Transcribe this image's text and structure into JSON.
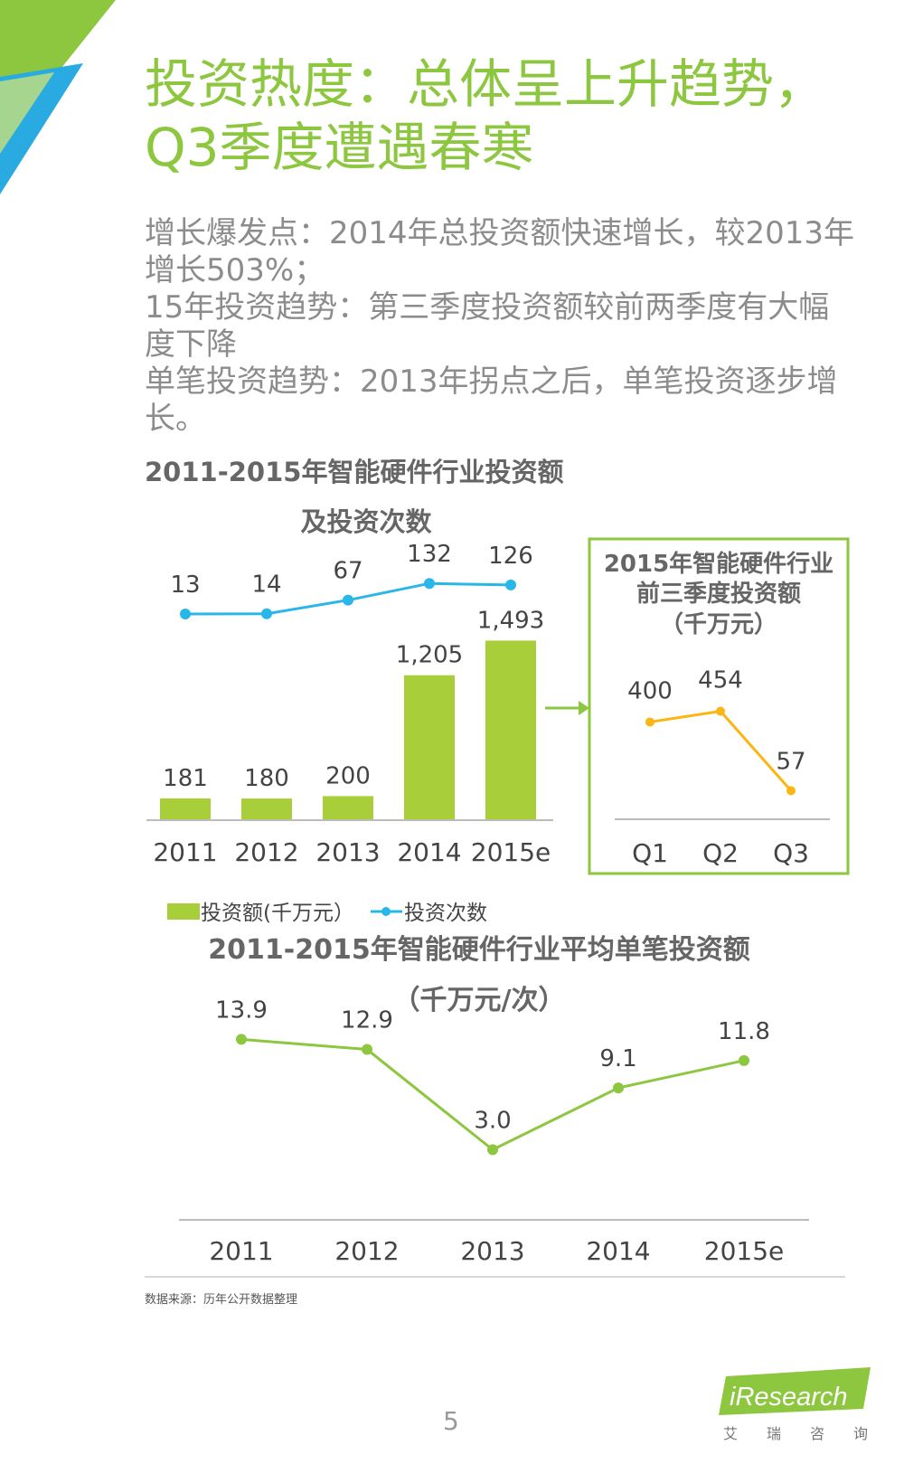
{
  "title": {
    "line1": "投资热度：总体呈上升趋势，",
    "line2": "Q3季度遭遇春寒"
  },
  "bullets": [
    "增长爆发点：2014年总投资额快速增长，较2013年增长503%；",
    "15年投资趋势：第三季度投资额较前两季度有大幅度下降",
    "单笔投资趋势：2013年拐点之后，单笔投资逐步增长。"
  ],
  "source": "数据来源：历年公开数据整理",
  "page_number": "5",
  "logo": {
    "text": "iResearch",
    "sub": [
      "艾",
      "瑞",
      "咨",
      "询"
    ]
  },
  "colors": {
    "green": "#8dc63f",
    "bar": "#a8cf3a",
    "line_blue": "#29b6e8",
    "line_orange": "#fbb613",
    "corner_blue": "#29abe2",
    "logo_green": "#8dc63f"
  },
  "chart_data": [
    {
      "type": "bar",
      "title_line1": "2011-2015年智能硬件行业投资额",
      "title_line2": "及投资次数",
      "categories": [
        "2011",
        "2012",
        "2013",
        "2014",
        "2015e"
      ],
      "series": [
        {
          "name": "投资额(千万元）",
          "type": "bar",
          "values": [
            181,
            180,
            200,
            1205,
            1493
          ],
          "labels": [
            "181",
            "180",
            "200",
            "1,205",
            "1,493"
          ]
        },
        {
          "name": "投资次数",
          "type": "line",
          "values": [
            13,
            14,
            67,
            132,
            126
          ],
          "labels": [
            "13",
            "14",
            "67",
            "132",
            "126"
          ]
        }
      ],
      "legend_position": "bottom"
    },
    {
      "type": "line",
      "title_line1": "2015年智能硬件行业",
      "title_line2": "前三季度投资额",
      "title_line3": "（千万元）",
      "categories": [
        "Q1",
        "Q2",
        "Q3"
      ],
      "values": [
        400,
        454,
        57
      ],
      "labels": [
        "400",
        "454",
        "57"
      ]
    },
    {
      "type": "line",
      "title_line1": "2011-2015年智能硬件行业平均单笔投资额",
      "title_line2": "（千万元/次）",
      "categories": [
        "2011",
        "2012",
        "2013",
        "2014",
        "2015e"
      ],
      "values": [
        13.9,
        12.9,
        3.0,
        9.1,
        11.8
      ],
      "labels": [
        "13.9",
        "12.9",
        "3.0",
        "9.1",
        "11.8"
      ]
    }
  ]
}
